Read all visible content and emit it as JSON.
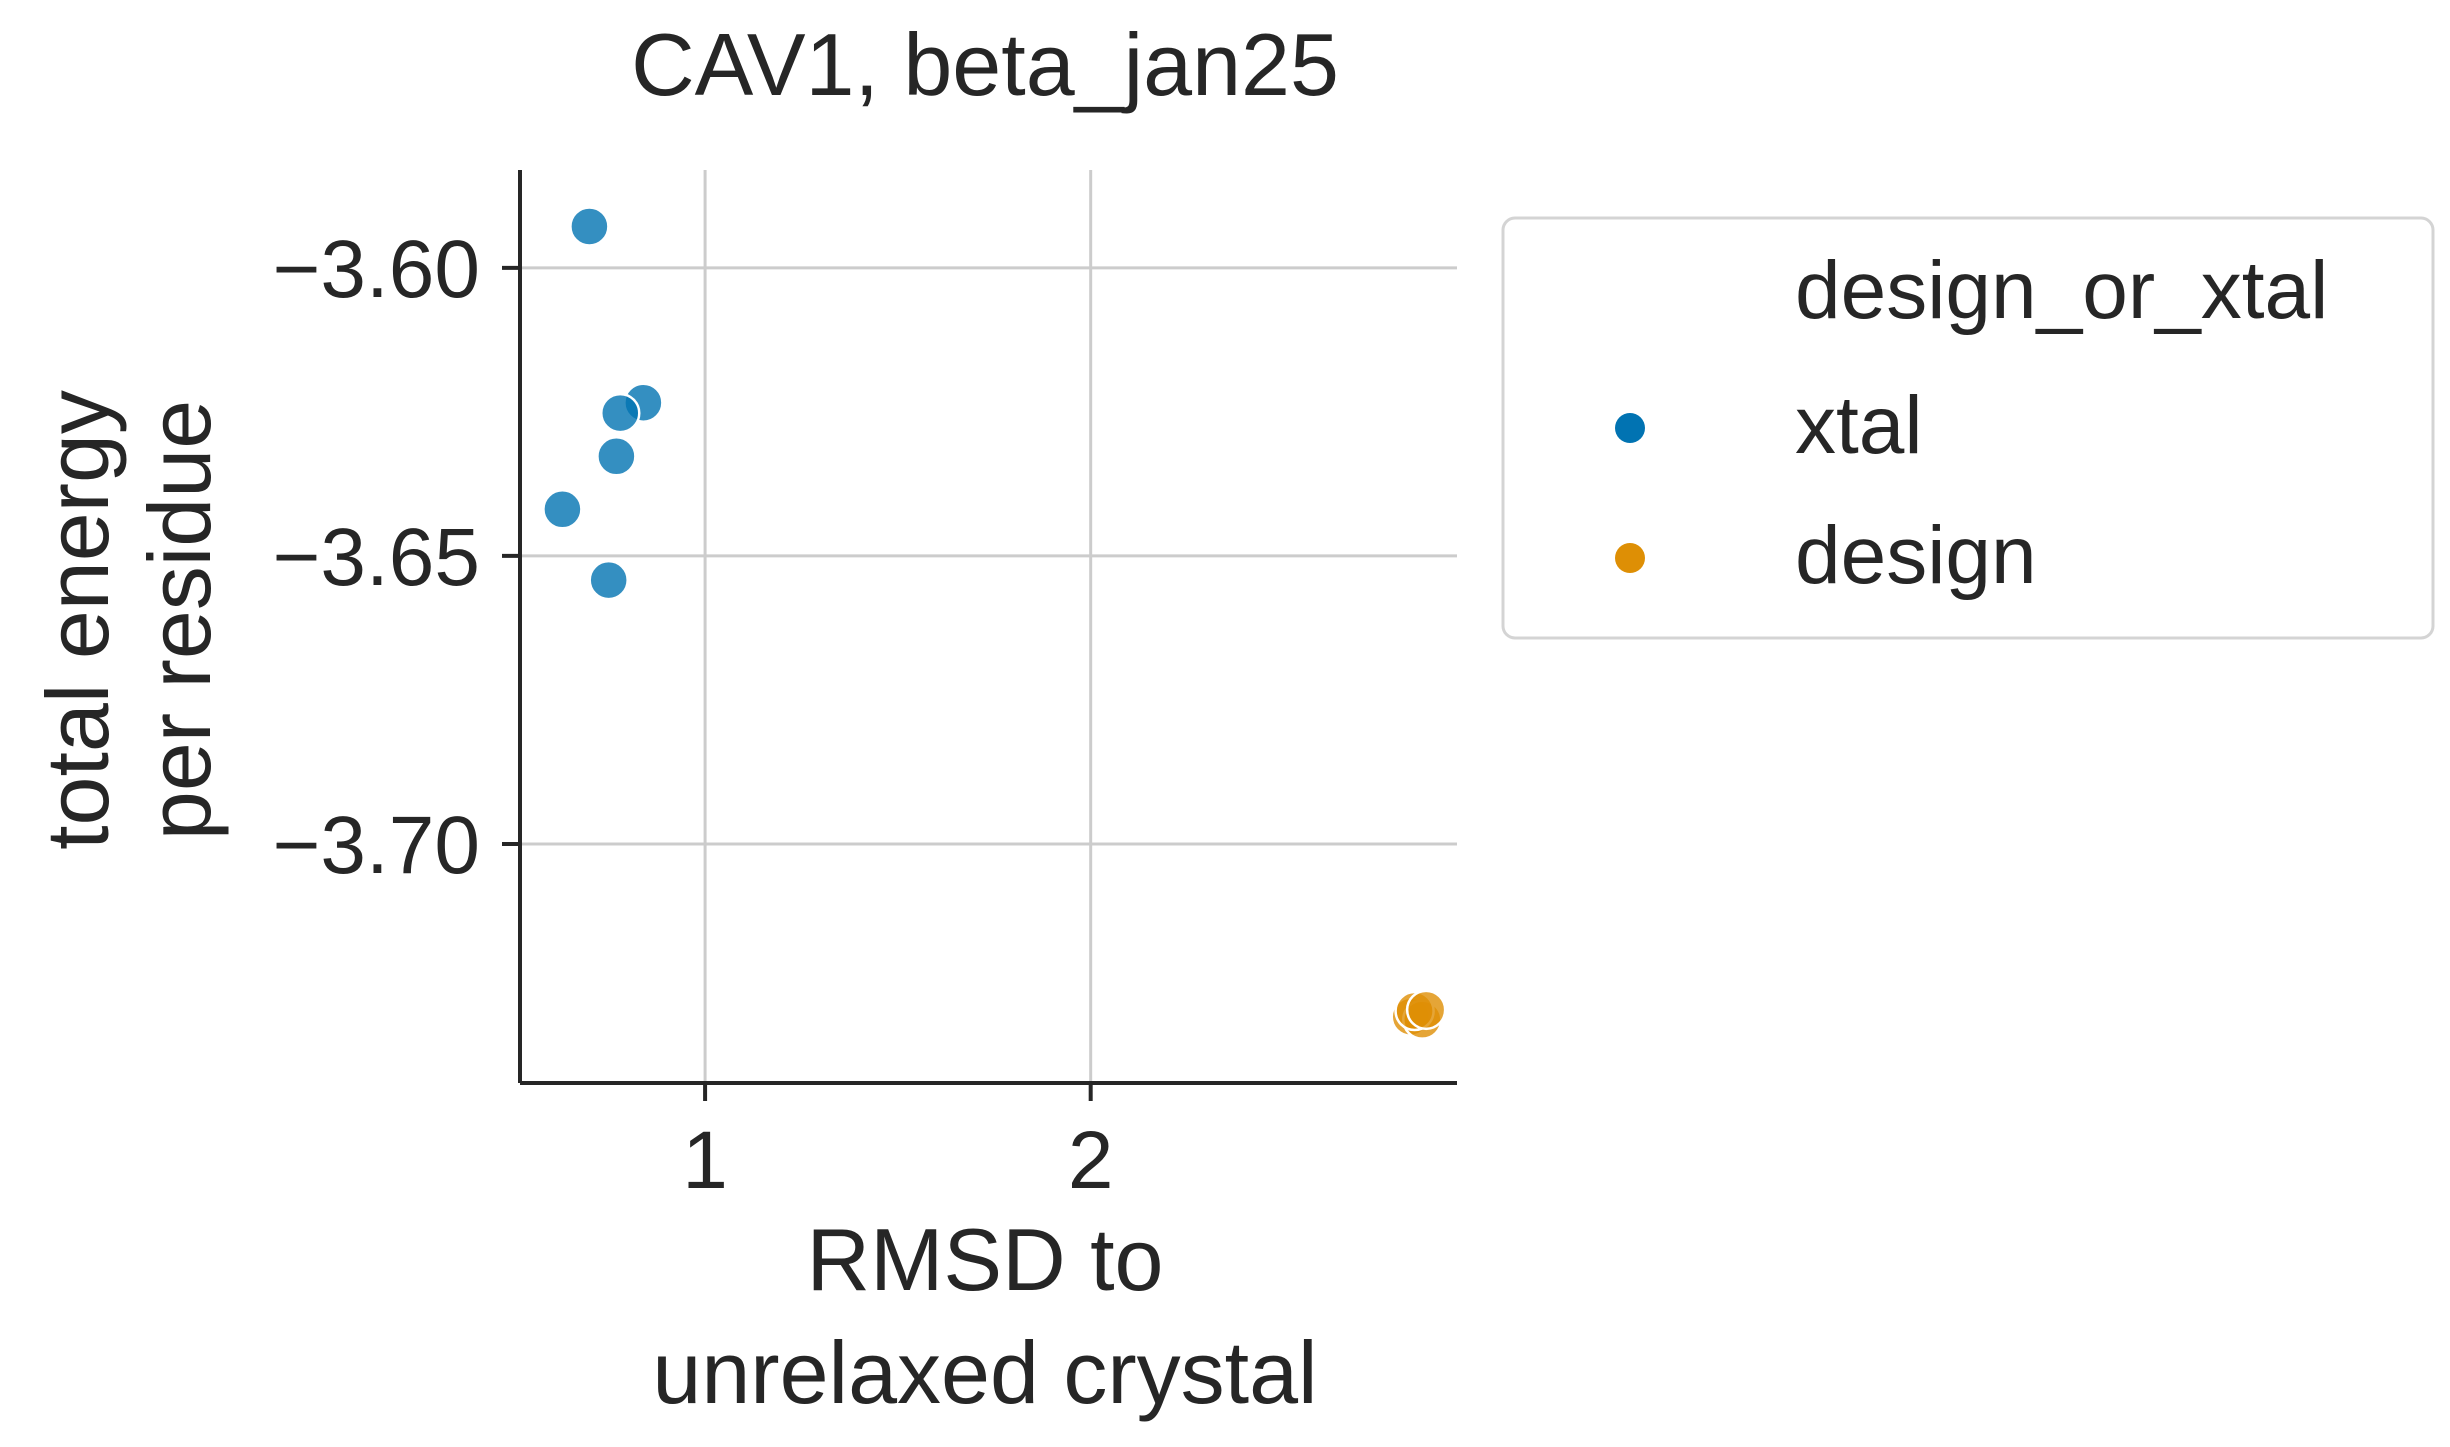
{
  "chart_data": {
    "type": "scatter",
    "title": "CAV1, beta_jan25",
    "xlabel": [
      "RMSD to",
      "unrelaxed crystal"
    ],
    "ylabel": [
      "total energy",
      "per residue"
    ],
    "xlim": [
      0.52,
      2.95
    ],
    "ylim": [
      -3.7415,
      -3.583
    ],
    "xticks": [
      1,
      2
    ],
    "yticks": [
      -3.6,
      -3.65,
      -3.7
    ],
    "ytick_labels": [
      "−3.60",
      "−3.65",
      "−3.70"
    ],
    "grid": true,
    "legend": {
      "title": "design_or_xtal",
      "placement": "outside-right",
      "entries": [
        "xtal",
        "design"
      ]
    },
    "series": [
      {
        "name": "xtal",
        "color": "#0173b2",
        "points": [
          {
            "x": 0.7,
            "y": -3.5928
          },
          {
            "x": 0.84,
            "y": -3.6234
          },
          {
            "x": 0.78,
            "y": -3.6252
          },
          {
            "x": 0.77,
            "y": -3.6327
          },
          {
            "x": 0.63,
            "y": -3.6419
          },
          {
            "x": 0.75,
            "y": -3.6542
          }
        ]
      },
      {
        "name": "design",
        "color": "#de8f05",
        "points": [
          {
            "x": 2.83,
            "y": -3.73
          },
          {
            "x": 2.86,
            "y": -3.7305
          },
          {
            "x": 2.84,
            "y": -3.729
          },
          {
            "x": 2.87,
            "y": -3.7288
          }
        ]
      }
    ]
  }
}
